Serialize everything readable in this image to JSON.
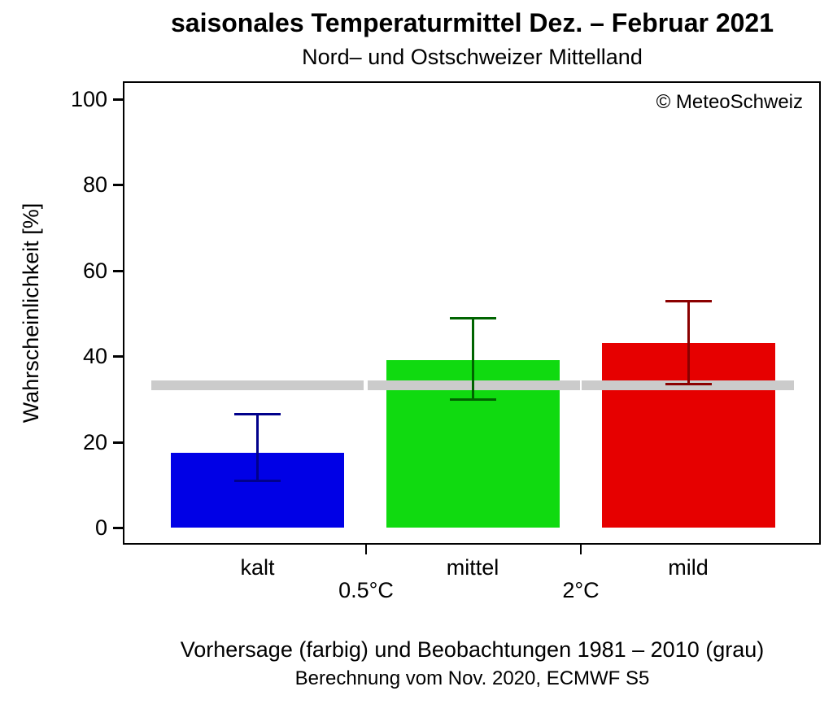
{
  "title": "saisonales Temperaturmittel Dez. – Februar 2021",
  "subtitle": "Nord– und Ostschweizer Mittelland",
  "copyright": "© MeteoSchweiz",
  "captions": {
    "line1": "Vorhersage (farbig) und Beobachtungen 1981 – 2010 (grau)",
    "line2": "Berechnung vom Nov. 2020, ECMWF S5"
  },
  "chart_data": {
    "type": "bar",
    "title": "saisonales Temperaturmittel Dez. – Februar 2021",
    "subtitle": "Nord– und Ostschweizer Mittelland",
    "xlabel": "",
    "ylabel": "Wahrscheinlichkeit [%]",
    "ylim": [
      0,
      100
    ],
    "yticks": [
      0,
      20,
      40,
      60,
      80,
      100
    ],
    "grid": false,
    "categories": [
      "kalt",
      "mittel",
      "mild"
    ],
    "series": [
      {
        "name": "Vorhersage",
        "values": [
          17.5,
          39,
          43
        ]
      }
    ],
    "error_bars": {
      "low": [
        11,
        30,
        33.5
      ],
      "high": [
        26.5,
        49,
        53
      ]
    },
    "observations": {
      "label": "Beobachtungen 1981 – 2010 (grau)",
      "values": [
        33.3,
        33.3,
        33.3
      ]
    },
    "threshold_labels": [
      "0.5°C",
      "2°C"
    ],
    "bar_colors": [
      "#0000E6",
      "#10DA10",
      "#E60000"
    ],
    "error_bar_colors": [
      "#00008B",
      "#006400",
      "#8B0000"
    ],
    "observation_color": "#CBCBCB"
  }
}
